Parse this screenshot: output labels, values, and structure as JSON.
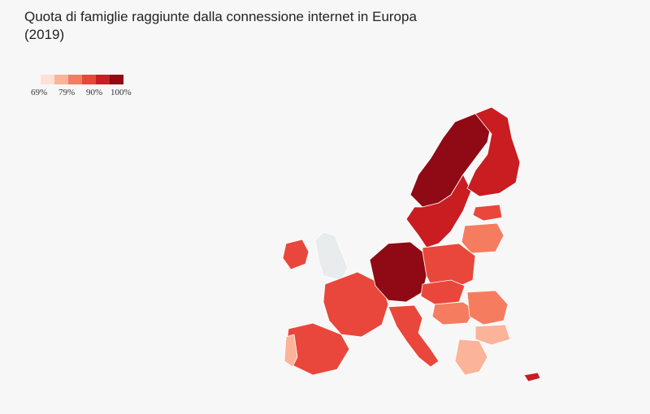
{
  "title": {
    "line1": "Quota di famiglie raggiunte dalla connessione internet in Europa",
    "line2": "(2019)"
  },
  "legend": {
    "labels": [
      "69%",
      "79%",
      "90%",
      "100%"
    ],
    "colors": [
      "#fde0d6",
      "#fbb39a",
      "#f67c60",
      "#e9473b",
      "#c91d22",
      "#8f0a14"
    ]
  },
  "map": {
    "no_data_color": "#e9ecec",
    "region_classes": {
      "scandinavia_north": 5,
      "sweden": 4,
      "finland": 4,
      "estonia": 3,
      "latvia_lithuania": 2,
      "poland": 3,
      "ireland": 3,
      "uk": "no_data",
      "france": 3,
      "benelux_germany": 5,
      "czech_slovakia": 3,
      "hungary": 2,
      "romania": 2,
      "bulgaria": 1,
      "greece": 1,
      "italy": 3,
      "spain": 3,
      "portugal": 1,
      "cyprus": 4
    }
  }
}
